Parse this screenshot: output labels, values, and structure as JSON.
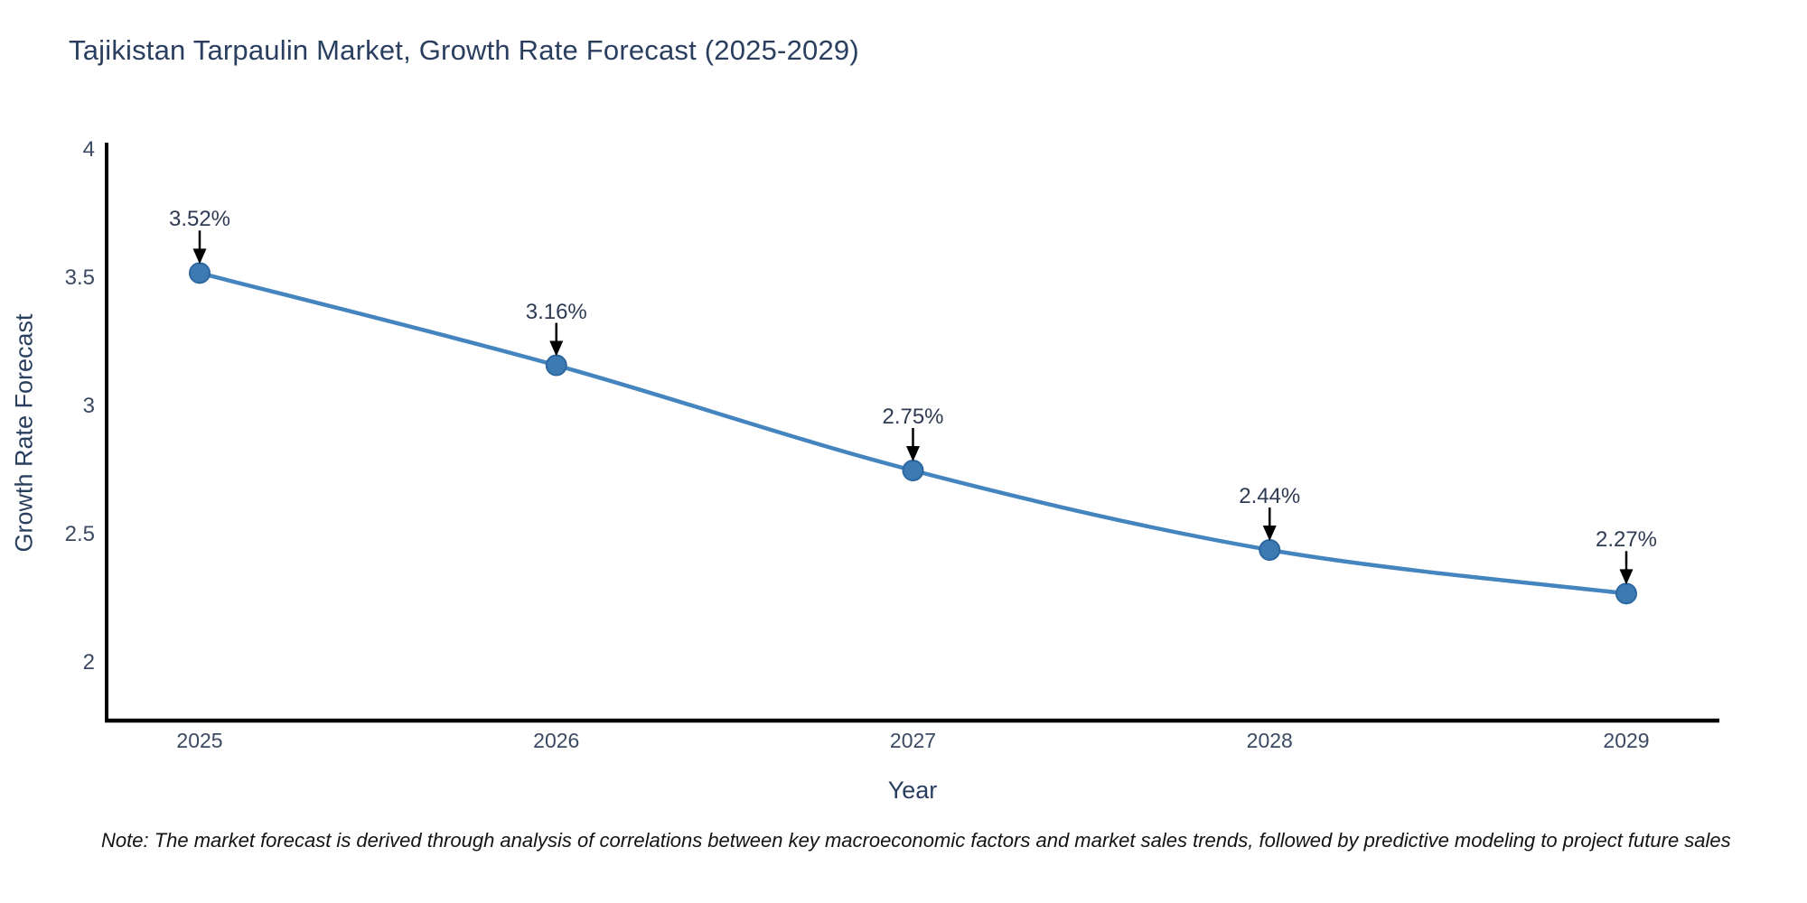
{
  "title": "Tajikistan Tarpaulin Market, Growth Rate Forecast (2025-2029)",
  "note": {
    "text": "Note: The market forecast is derived through analysis of correlations between key macroeconomic factors and market sales trends, followed by predictive modeling to project future sales"
  },
  "colors": {
    "line": "#4484bf",
    "marker_fill": "#3d7ab2",
    "marker_edge": "#2d679f",
    "axis": "#000000",
    "arrow": "#000000",
    "title_text": "#2a3f5f",
    "tick_text": "#3b4a63",
    "annotation_text": "#2e3b52"
  },
  "chart_data": {
    "type": "line",
    "title": "Tajikistan Tarpaulin Market, Growth Rate Forecast (2025-2029)",
    "xlabel": "Year",
    "ylabel": "Growth Rate Forecast",
    "categories": [
      "2025",
      "2026",
      "2027",
      "2028",
      "2029"
    ],
    "series": [
      {
        "name": "Growth Rate Forecast (%)",
        "values": [
          3.52,
          3.16,
          2.75,
          2.44,
          2.27
        ]
      }
    ],
    "point_labels": [
      "3.52%",
      "3.16%",
      "2.75%",
      "2.44%",
      "2.27%"
    ],
    "yticks": [
      4,
      3.5,
      3,
      2.5,
      2
    ],
    "ytick_labels": [
      "4",
      "3.5",
      "3",
      "2.5",
      "2"
    ],
    "ylim": [
      1.77,
      4.02
    ],
    "grid": false,
    "legend_position": "none",
    "line_shape": "spline",
    "markers": true,
    "annotations": "value labels with downward arrows above each point"
  }
}
